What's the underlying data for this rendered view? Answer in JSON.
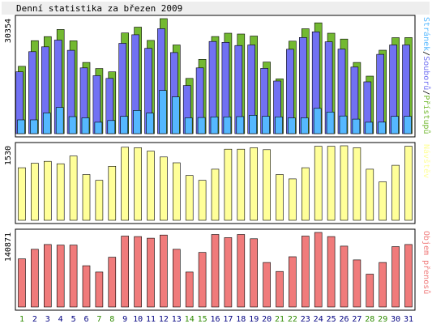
{
  "chart_data": {
    "type": "bar",
    "title": "Denní statistika za březen 2009",
    "categories": [
      "1",
      "2",
      "3",
      "4",
      "5",
      "6",
      "7",
      "8",
      "9",
      "10",
      "11",
      "12",
      "13",
      "14",
      "15",
      "16",
      "17",
      "18",
      "19",
      "20",
      "21",
      "22",
      "23",
      "24",
      "25",
      "26",
      "27",
      "28",
      "29",
      "30",
      "31"
    ],
    "weekend_days": [
      "1",
      "7",
      "8",
      "14",
      "15",
      "21",
      "22",
      "28",
      "29"
    ],
    "colors": {
      "background": "#ffffff",
      "panel_border": "#000000",
      "bar_outline": "#000000",
      "title_bar": "#eeeeee",
      "hits": "#73b931",
      "files": "#7171f3",
      "pages": "#55b8ff",
      "visits": "#ffff99",
      "kbytes": "#f07b7b",
      "weekday_label": "#000080",
      "weekend_label": "#2e8b00"
    },
    "panels": [
      {
        "id": "top",
        "max_label": "30354",
        "legend": [
          {
            "text": "Stránek",
            "color": "#55b8ff"
          },
          {
            "text": "/",
            "color": "#000000"
          },
          {
            "text": "Souborů",
            "color": "#7171f3"
          },
          {
            "text": "/",
            "color": "#000000"
          },
          {
            "text": "Přístupů",
            "color": "#73b931"
          }
        ],
        "ylim": [
          0,
          30354
        ],
        "series": [
          {
            "name": "Přístupů",
            "values": [
              17770,
              24550,
              25600,
              27500,
              24500,
              18800,
              17180,
              16320,
              26570,
              28120,
              24600,
              30354,
              23400,
              14580,
              19600,
              25630,
              26500,
              26290,
              25760,
              18900,
              14450,
              24420,
              27690,
              29240,
              26500,
              24960,
              18800,
              15180,
              22020,
              25320,
              25360
            ]
          },
          {
            "name": "Souborů",
            "values": [
              16320,
              21630,
              22920,
              24680,
              22000,
              17350,
              15300,
              14580,
              23840,
              26100,
              22500,
              27700,
              21400,
              12690,
              17350,
              24320,
              24100,
              23260,
              23400,
              17220,
              13900,
              22270,
              25370,
              26870,
              24250,
              22320,
              17570,
              13680,
              20930,
              23400,
              23400
            ]
          },
          {
            "name": "Stránek",
            "values": [
              3640,
              3640,
              5460,
              6900,
              4480,
              4160,
              3010,
              3470,
              4560,
              6130,
              5400,
              11400,
              9700,
              4160,
              4260,
              4420,
              4420,
              4480,
              4860,
              4580,
              4420,
              4140,
              4160,
              6660,
              5700,
              4660,
              3820,
              3010,
              3030,
              4560,
              4560
            ]
          }
        ]
      },
      {
        "id": "middle",
        "max_label": "1530",
        "legend": [
          {
            "text": "Návštěv",
            "color": "#ffff99"
          }
        ],
        "ylim": [
          0,
          1530
        ],
        "series": [
          {
            "name": "Návštěv",
            "values": [
              1080,
              1170,
              1210,
              1160,
              1320,
              940,
              820,
              1110,
              1500,
              1490,
              1420,
              1300,
              1180,
              920,
              820,
              1050,
              1460,
              1460,
              1490,
              1450,
              940,
              850,
              1080,
              1520,
              1520,
              1530,
              1490,
              1050,
              790,
              1130,
              1520
            ]
          }
        ]
      },
      {
        "id": "bottom",
        "max_label": "140871",
        "legend": [
          {
            "text": "Objem přenosů",
            "color": "#f07b7b"
          }
        ],
        "ylim": [
          0,
          140871
        ],
        "series": [
          {
            "name": "Objem přenosů",
            "values": [
              91000,
              109000,
              118000,
              117000,
              117000,
              78000,
              66000,
              94000,
              134000,
              133000,
              130000,
              136000,
              109000,
              66000,
              103000,
              137000,
              131000,
              137000,
              129000,
              84000,
              67000,
              95000,
              134000,
              140871,
              133000,
              115000,
              89000,
              62000,
              84000,
              114000,
              118000
            ]
          }
        ]
      }
    ]
  }
}
